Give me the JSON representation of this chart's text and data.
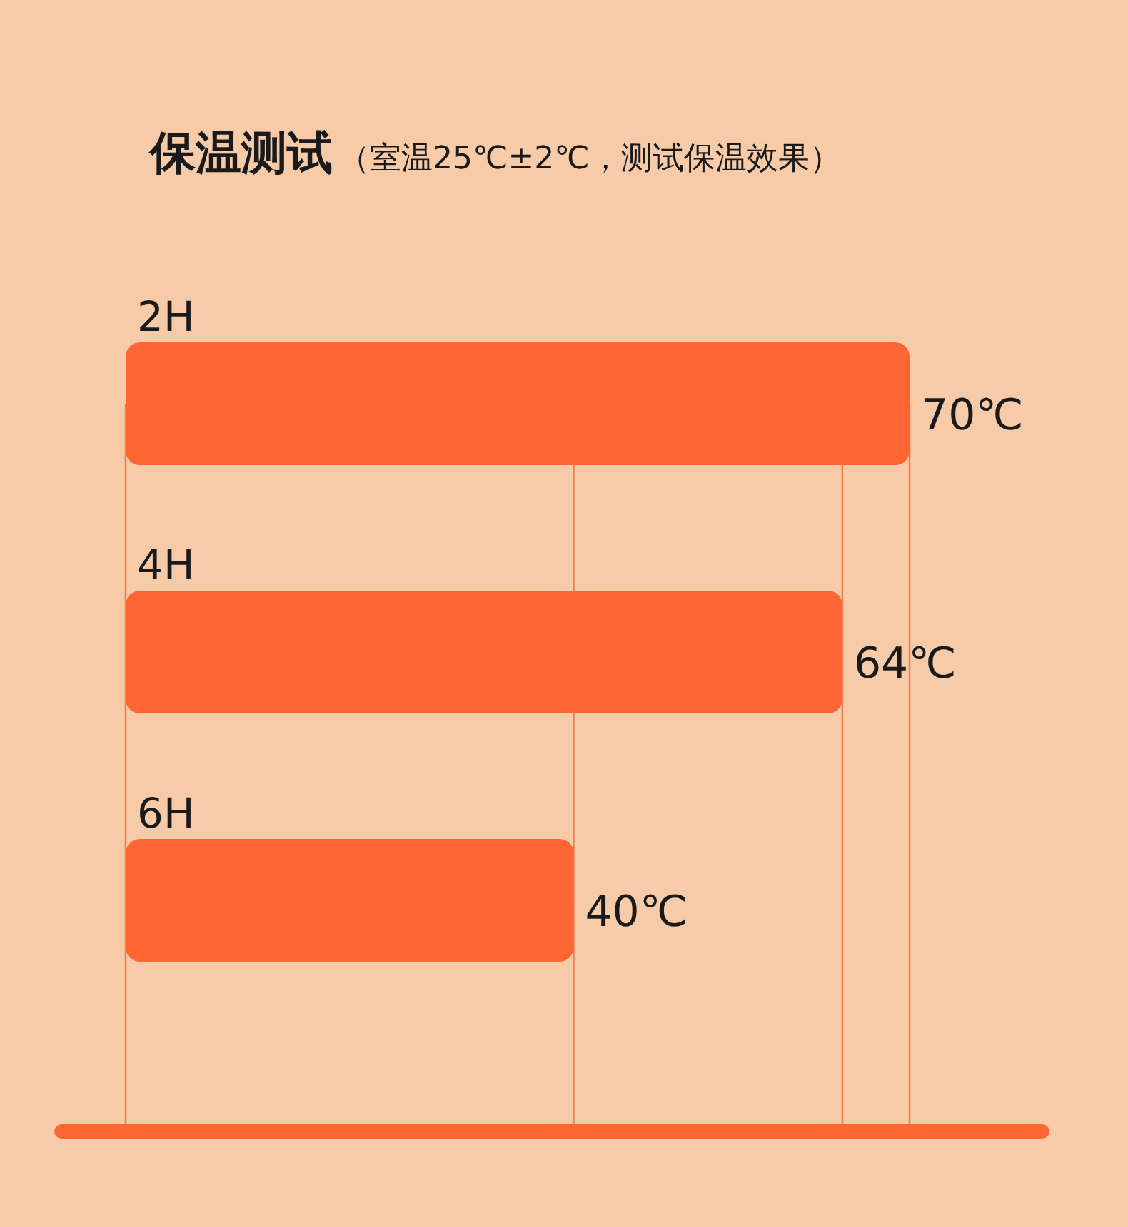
{
  "chart_data": {
    "type": "bar",
    "orientation": "horizontal",
    "title": "保温测试",
    "subtitle": "（室温25℃±2℃，测试保温效果）",
    "categories": [
      "2H",
      "4H",
      "6H"
    ],
    "values": [
      70,
      64,
      40
    ],
    "value_labels": [
      "70℃",
      "64℃",
      "40℃"
    ],
    "color": "#ff6633",
    "xlim": [
      0,
      70
    ],
    "xticks": [
      {
        "value": 0,
        "label": null
      },
      {
        "value": 40,
        "label": null
      },
      {
        "value": 64,
        "label": null
      },
      {
        "value": 70,
        "label": null
      }
    ],
    "grid": "x"
  }
}
